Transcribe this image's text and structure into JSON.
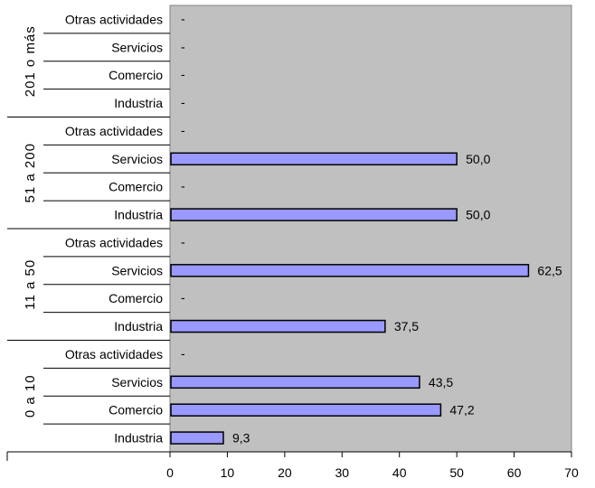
{
  "chart_data": {
    "type": "bar",
    "orientation": "horizontal",
    "title": "",
    "xlabel": "",
    "ylabel": "",
    "xlim": [
      0,
      70
    ],
    "xticks": [
      0,
      10,
      20,
      30,
      40,
      50,
      60,
      70
    ],
    "grid": false,
    "legend": "none",
    "missing_label": "-",
    "colors": {
      "plot_background": "#c0c0c0",
      "bar_fill": "#9999ff",
      "bar_stroke": "#000000"
    },
    "groups": [
      {
        "name": "201 o más",
        "categories": [
          "Otras actividades",
          "Servicios",
          "Comercio",
          "Industria"
        ],
        "values": [
          null,
          null,
          null,
          null
        ],
        "value_labels": [
          "-",
          "-",
          "-",
          "-"
        ]
      },
      {
        "name": "51 a 200",
        "categories": [
          "Otras actividades",
          "Servicios",
          "Comercio",
          "Industria"
        ],
        "values": [
          null,
          50.0,
          null,
          50.0
        ],
        "value_labels": [
          "-",
          "50,0",
          "-",
          "50,0"
        ]
      },
      {
        "name": "11 a 50",
        "categories": [
          "Otras actividades",
          "Servicios",
          "Comercio",
          "Industria"
        ],
        "values": [
          null,
          62.5,
          null,
          37.5
        ],
        "value_labels": [
          "-",
          "62,5",
          "-",
          "37,5"
        ]
      },
      {
        "name": "0 a 10",
        "categories": [
          "Otras actividades",
          "Servicios",
          "Comercio",
          "Industria"
        ],
        "values": [
          null,
          43.5,
          47.2,
          9.3
        ],
        "value_labels": [
          "-",
          "43,5",
          "47,2",
          "9,3"
        ]
      }
    ]
  }
}
